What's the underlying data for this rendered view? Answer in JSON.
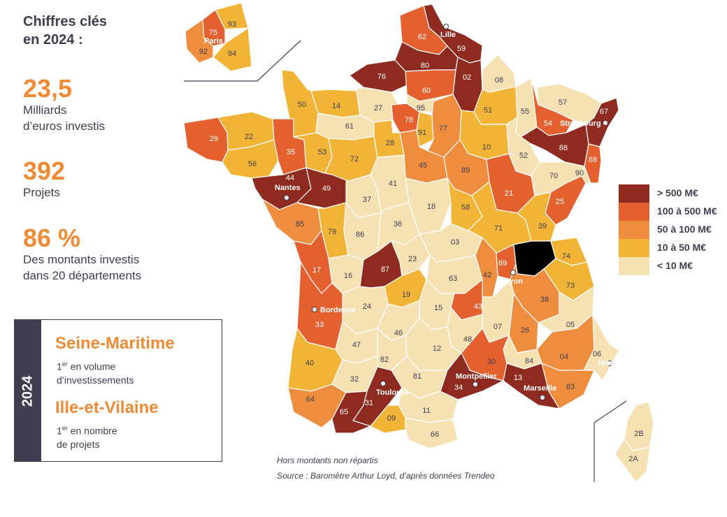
{
  "key_figures": {
    "title_line1": "Chiffres clés",
    "title_line2": "en 2024 :",
    "stats": [
      {
        "value": "23,5",
        "label_line1": "Milliards",
        "label_line2": "d’euros investis"
      },
      {
        "value": "392",
        "label_line1": "Projets",
        "label_line2": ""
      },
      {
        "value": "86 %",
        "label_line1": "Des montants investis",
        "label_line2": "dans 20 départements"
      }
    ]
  },
  "highlight_box": {
    "year": "2024",
    "first": {
      "name": "Seine-Maritime",
      "rank": "1",
      "rank_suffix": "er",
      "desc_line1": " en volume",
      "desc_line2": "d’investissements"
    },
    "second": {
      "name": "Ille-et-Vilaine",
      "rank": "1",
      "rank_suffix": "er",
      "desc_line1": " en nombre",
      "desc_line2": "de projets"
    }
  },
  "legend": [
    {
      "label": "> 500 M€",
      "color": "#8e2a1f"
    },
    {
      "label": "100 à 500 M€",
      "color": "#e4612f"
    },
    {
      "label": "50 à 100 M€",
      "color": "#ef8d3f"
    },
    {
      "label": "10 à 50 M€",
      "color": "#f2b437"
    },
    {
      "label": "< 10 M€",
      "color": "#f6e1b3"
    }
  ],
  "notes": {
    "line1": "Hors montants non répartis",
    "line2": "Source : Baromètre Arthur Loyd, d’après données Trendeo"
  },
  "map": {
    "departments": {
      "02": 0,
      "03": 4,
      "04": 2,
      "05": 4,
      "06": 4,
      "07": 4,
      "08": 4,
      "09": 3,
      "10": 3,
      "11": 4,
      "12": 4,
      "13": 0,
      "14": 3,
      "15": 4,
      "16": 4,
      "17": 1,
      "18": 4,
      "19": 3,
      "21": 1,
      "22": 3,
      "23": 4,
      "24": 4,
      "25": 1,
      "26": 2,
      "27": 4,
      "28": 3,
      "29": 1,
      "30": 1,
      "31": 0,
      "32": 4,
      "33": 1,
      "34": 0,
      "35": 1,
      "36": 4,
      "37": 4,
      "38": 2,
      "39": 3,
      "40": 3,
      "41": 4,
      "42": 2,
      "43": 1,
      "44": 0,
      "45": 2,
      "46": 4,
      "47": 4,
      "48": 4,
      "49": 0,
      "50": 3,
      "51": 3,
      "52": 4,
      "53": 3,
      "54": 1,
      "55": 4,
      "56": 3,
      "57": 4,
      "58": 3,
      "59": 0,
      "60": 1,
      "61": 4,
      "62": 1,
      "63": 4,
      "64": 2,
      "65": 0,
      "66": 4,
      "67": 0,
      "68": 1,
      "69": 1,
      "70": 4,
      "71": 3,
      "72": 3,
      "73": 3,
      "74": 3,
      "76": 0,
      "77": 2,
      "78": 1,
      "79": 3,
      "80": 0,
      "81": 4,
      "82": 4,
      "83": 2,
      "84": 4,
      "85": 2,
      "86": 4,
      "87": 0,
      "88": 0,
      "89": 2,
      "90": 4,
      "91": 3,
      "95": 4,
      "2A": 4,
      "2B": 4,
      "75": 1,
      "92": 2,
      "93": 3,
      "94": 3
    },
    "cities": {
      "lille": "Lille",
      "strasbourg": "Strasbourg",
      "nantes": "Nantes",
      "lyon": "Lyon",
      "bordeaux": "Bordeaux",
      "toulouse": "Toulouse",
      "montpellier": "Montpellier",
      "marseille": "Marseille",
      "nice": "Nice",
      "paris": "Paris"
    },
    "labels": {
      "d02": "02",
      "d03": "03",
      "d04": "04",
      "d05": "05",
      "d06": "06",
      "d07": "07",
      "d08": "08",
      "d09": "09",
      "d10": "10",
      "d11": "11",
      "d12": "12",
      "d13": "13",
      "d14": "14",
      "d15": "15",
      "d16": "16",
      "d17": "17",
      "d18": "18",
      "d19": "19",
      "d21": "21",
      "d22": "22",
      "d23": "23",
      "d24": "24",
      "d25": "25",
      "d26": "26",
      "d27": "27",
      "d28": "28",
      "d29": "29",
      "d30": "30",
      "d31": "31",
      "d32": "32",
      "d33": "33",
      "d34": "34",
      "d35": "35",
      "d36": "36",
      "d37": "37",
      "d38": "38",
      "d39": "39",
      "d40": "40",
      "d41": "41",
      "d42": "42",
      "d43": "43",
      "d44": "44",
      "d45": "45",
      "d46": "46",
      "d47": "47",
      "d48": "48",
      "d49": "49",
      "d50": "50",
      "d51": "51",
      "d52": "52",
      "d53": "53",
      "d54": "54",
      "d55": "55",
      "d56": "56",
      "d57": "57",
      "d58": "58",
      "d59": "59",
      "d60": "60",
      "d61": "61",
      "d62": "62",
      "d63": "63",
      "d64": "64",
      "d65": "65",
      "d66": "66",
      "d67": "67",
      "d68": "68",
      "d69": "69",
      "d70": "70",
      "d71": "71",
      "d72": "72",
      "d73": "73",
      "d74": "74",
      "d76": "76",
      "d77": "77",
      "d78": "78",
      "d79": "79",
      "d80": "80",
      "d81": "81",
      "d82": "82",
      "d83": "83",
      "d84": "84",
      "d85": "85",
      "d86": "86",
      "d87": "87",
      "d88": "88",
      "d89": "89",
      "d90": "90",
      "d91": "91",
      "d95": "95",
      "d2A": "2A",
      "d2B": "2B",
      "d75": "75",
      "d92": "92",
      "d93": "93",
      "d94": "94"
    }
  }
}
